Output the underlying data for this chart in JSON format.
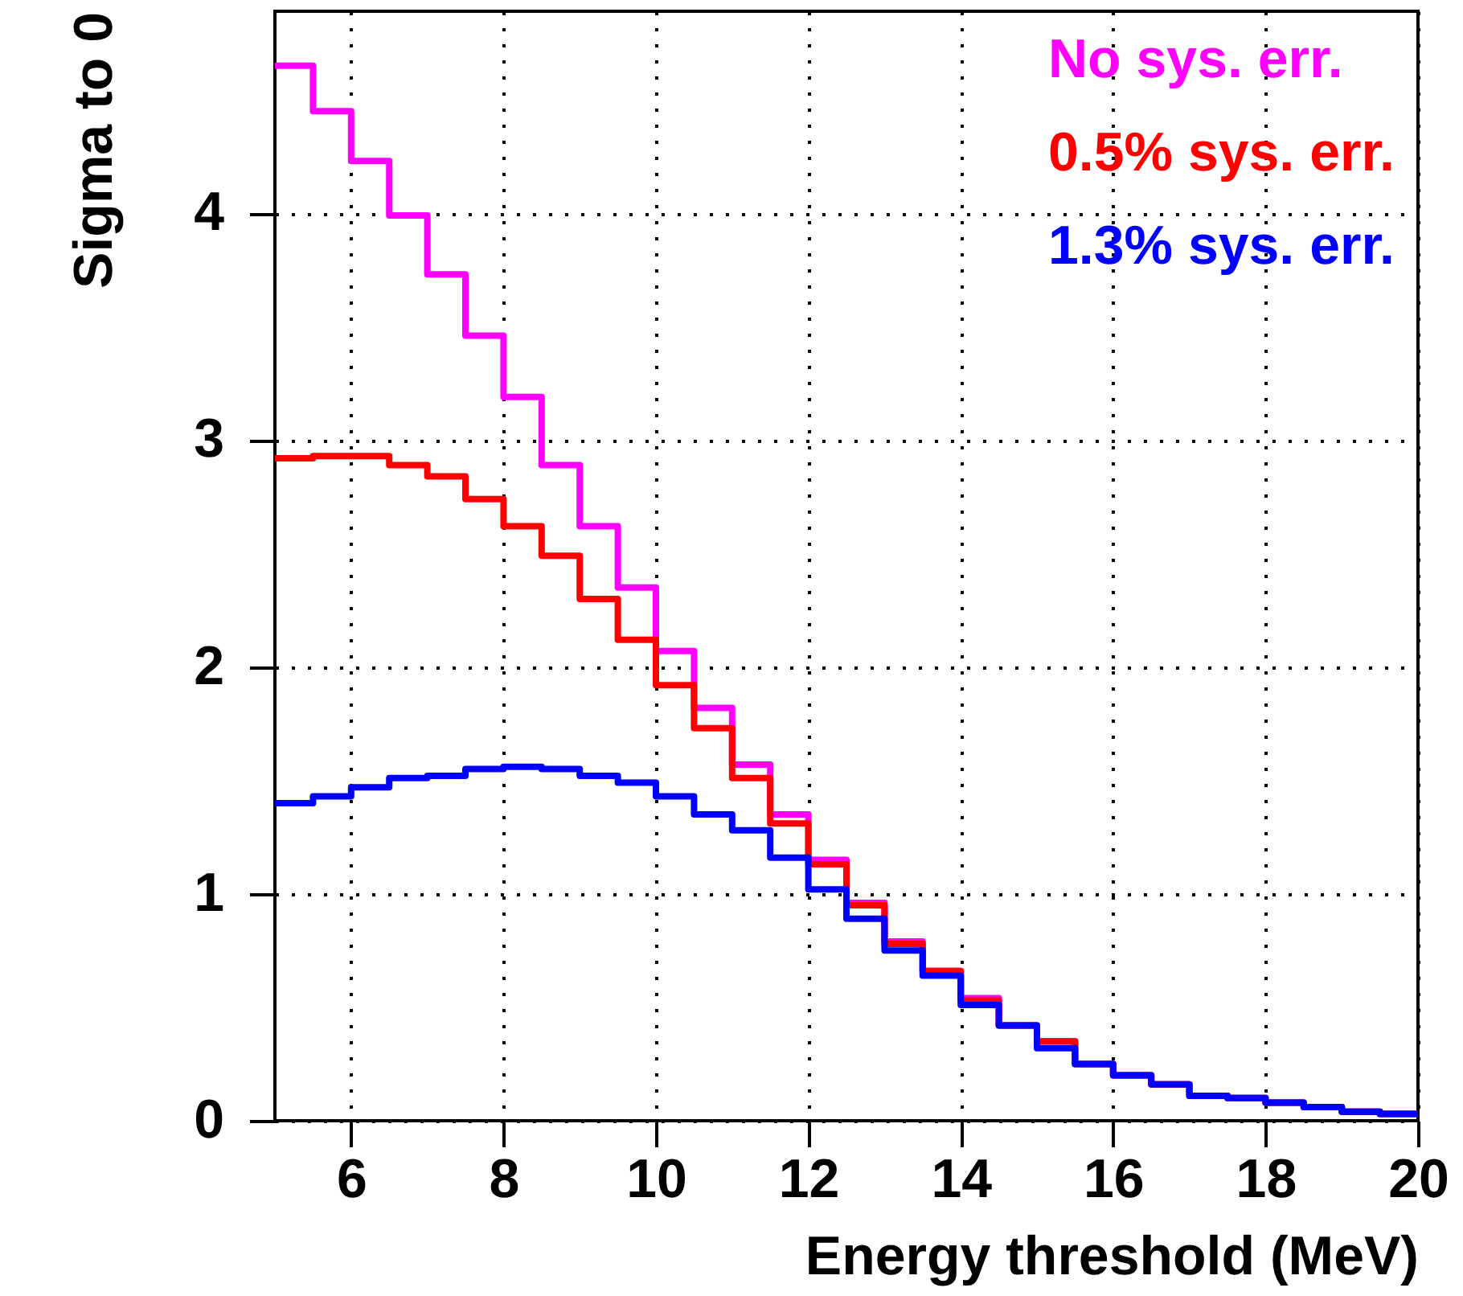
{
  "chart_data": {
    "type": "histogram",
    "xlabel": "Energy threshold (MeV)",
    "ylabel": "Sigma to 0",
    "bins": [
      5,
      5.5,
      6,
      6.5,
      7,
      7.5,
      8,
      8.5,
      9,
      9.5,
      10,
      10.5,
      11,
      11.5,
      12,
      12.5,
      13,
      13.5,
      14,
      14.5,
      15,
      15.5,
      16,
      16.5,
      17,
      17.5,
      18,
      18.5,
      19,
      19.5,
      20
    ],
    "series": [
      {
        "name": "No sys. err.",
        "color": "#ff00ff",
        "values": [
          4.65,
          4.45,
          4.23,
          3.99,
          3.73,
          3.46,
          3.19,
          2.89,
          2.62,
          2.35,
          2.07,
          1.82,
          1.57,
          1.35,
          1.15,
          0.96,
          0.79,
          0.66,
          0.54,
          0.42,
          0.35,
          0.25,
          0.2,
          0.16,
          0.11,
          0.1,
          0.08,
          0.06,
          0.04,
          0.03
        ]
      },
      {
        "name": "0.5% sys. err.",
        "color": "#ff0000",
        "values": [
          2.92,
          2.93,
          2.93,
          2.89,
          2.84,
          2.74,
          2.62,
          2.49,
          2.3,
          2.12,
          1.92,
          1.73,
          1.51,
          1.31,
          1.13,
          0.95,
          0.78,
          0.66,
          0.53,
          0.42,
          0.35,
          0.25,
          0.2,
          0.16,
          0.11,
          0.1,
          0.08,
          0.06,
          0.04,
          0.03
        ]
      },
      {
        "name": "1.3% sys. err.",
        "color": "#0000ff",
        "values": [
          1.4,
          1.43,
          1.47,
          1.51,
          1.52,
          1.55,
          1.56,
          1.55,
          1.52,
          1.49,
          1.43,
          1.35,
          1.28,
          1.16,
          1.02,
          0.89,
          0.75,
          0.64,
          0.51,
          0.42,
          0.32,
          0.25,
          0.2,
          0.16,
          0.11,
          0.1,
          0.08,
          0.06,
          0.04,
          0.03
        ]
      }
    ],
    "xlim": [
      5,
      20
    ],
    "xticks": [
      6,
      8,
      10,
      12,
      14,
      16,
      18,
      20
    ],
    "ylim": [
      0,
      4.89
    ],
    "yticks": [
      0,
      1,
      2,
      3,
      4
    ],
    "grid": true,
    "legend": "top right"
  }
}
